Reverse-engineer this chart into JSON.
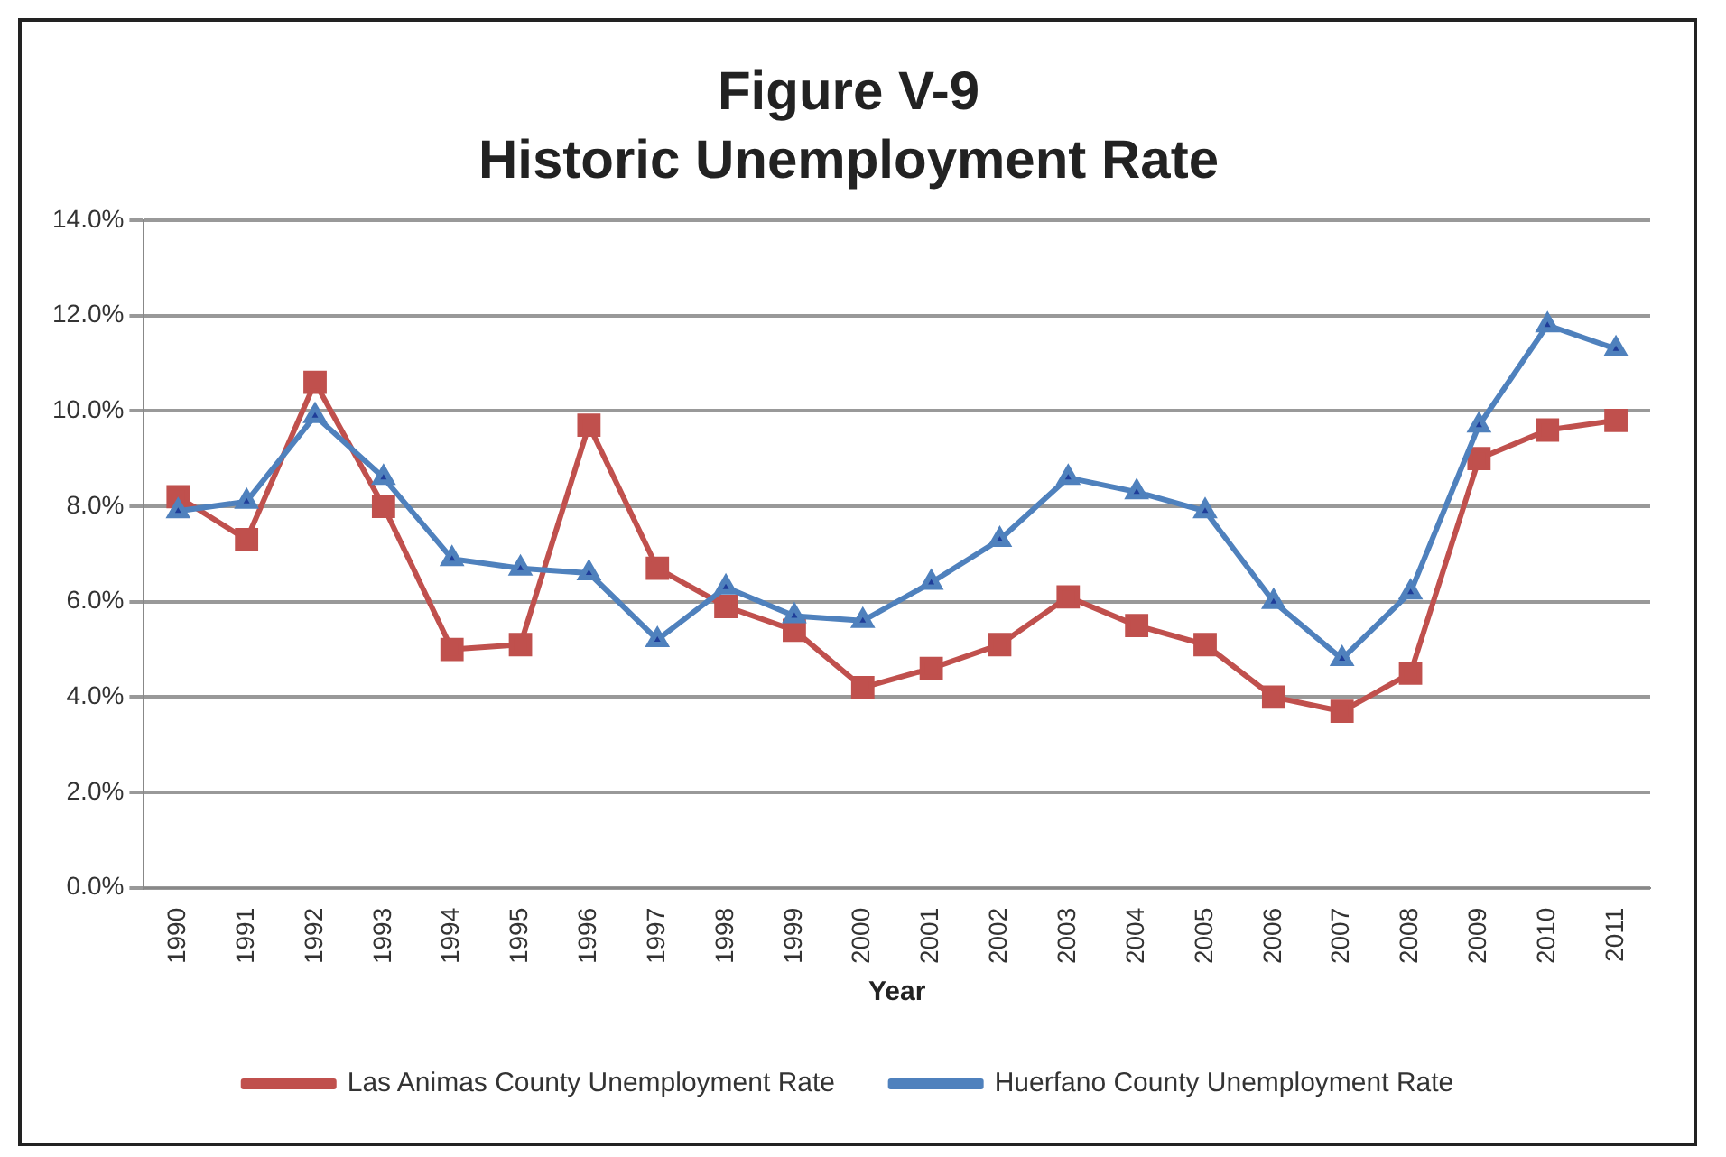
{
  "chart_data": {
    "type": "line",
    "title": "Figure V-9",
    "subtitle": "Historic Unemployment Rate",
    "xlabel": "Year",
    "categories": [
      "1990",
      "1991",
      "1992",
      "1993",
      "1994",
      "1995",
      "1996",
      "1997",
      "1998",
      "1999",
      "2000",
      "2001",
      "2002",
      "2003",
      "2004",
      "2005",
      "2006",
      "2007",
      "2008",
      "2009",
      "2010",
      "2011"
    ],
    "series": [
      {
        "name": "Las Animas County Unemployment Rate",
        "color": "#c0504d",
        "marker": "square",
        "values": [
          8.2,
          7.3,
          10.6,
          8.0,
          5.0,
          5.1,
          9.7,
          6.7,
          5.9,
          5.4,
          4.2,
          4.6,
          5.1,
          6.1,
          5.5,
          5.1,
          4.0,
          3.7,
          4.5,
          9.0,
          9.6,
          9.8
        ]
      },
      {
        "name": "Huerfano County Unemployment Rate",
        "color": "#4f81bd",
        "marker": "triangle",
        "values": [
          7.9,
          8.1,
          9.9,
          8.6,
          6.9,
          6.7,
          6.6,
          5.2,
          6.3,
          5.7,
          5.6,
          6.4,
          7.3,
          8.6,
          8.3,
          7.9,
          6.0,
          4.8,
          6.2,
          9.7,
          11.8,
          11.3
        ]
      }
    ],
    "ylim": [
      0,
      14
    ],
    "yticks": [
      {
        "value": 0,
        "label": "0.0%"
      },
      {
        "value": 2,
        "label": "2.0%"
      },
      {
        "value": 4,
        "label": "4.0%"
      },
      {
        "value": 6,
        "label": "6.0%"
      },
      {
        "value": 8,
        "label": "8.0%"
      },
      {
        "value": 10,
        "label": "10.0%"
      },
      {
        "value": 12,
        "label": "12.0%"
      },
      {
        "value": 14,
        "label": "14.0%"
      }
    ],
    "grid": "y",
    "legend": "bottom",
    "line_style": "solid"
  }
}
